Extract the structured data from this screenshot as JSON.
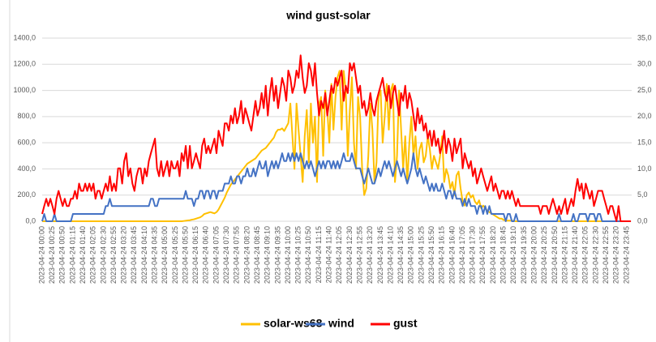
{
  "chart_data": {
    "type": "line",
    "title": "wind gust-solar",
    "categories": [
      "2023-04-24 00:00",
      null,
      null,
      null,
      null,
      "2023-04-24 00:25",
      null,
      null,
      null,
      null,
      "2023-04-24 00:50",
      null,
      null,
      null,
      null,
      "2023-04-24 01:15",
      null,
      null,
      null,
      null,
      "2023-04-24 01:40",
      null,
      null,
      null,
      null,
      "2023-04-24 02:05",
      null,
      null,
      null,
      null,
      "2023-04-24 02:30",
      null,
      null,
      null,
      null,
      "2023-04-24 02:55",
      null,
      null,
      null,
      null,
      "2023-04-24 03:20",
      null,
      null,
      null,
      null,
      "2023-04-24 03:45",
      null,
      null,
      null,
      null,
      "2023-04-24 04:10",
      null,
      null,
      null,
      null,
      "2023-04-24 04:35",
      null,
      null,
      null,
      null,
      "2023-04-24 05:00",
      null,
      null,
      null,
      null,
      "2023-04-24 05:25",
      null,
      null,
      null,
      null,
      "2023-04-24 05:50",
      null,
      null,
      null,
      null,
      "2023-04-24 06:15",
      null,
      null,
      null,
      null,
      "2023-04-24 06:40",
      null,
      null,
      null,
      null,
      "2023-04-24 07:05",
      null,
      null,
      null,
      null,
      "2023-04-24 07:30",
      null,
      null,
      null,
      null,
      "2023-04-24 07:55",
      null,
      null,
      null,
      null,
      "2023-04-24 08:20",
      null,
      null,
      null,
      null,
      "2023-04-24 08:45",
      null,
      null,
      null,
      null,
      "2023-04-24 09:10",
      null,
      null,
      null,
      null,
      "2023-04-24 09:35",
      null,
      null,
      null,
      null,
      "2023-04-24 10:00",
      null,
      null,
      null,
      null,
      "2023-04-24 10:25",
      null,
      null,
      null,
      null,
      "2023-04-24 10:50",
      null,
      null,
      null,
      null,
      "2023-04-24 11:15",
      null,
      null,
      null,
      null,
      "2023-04-24 11:40",
      null,
      null,
      null,
      null,
      "2023-04-24 12:05",
      null,
      null,
      null,
      null,
      "2023-04-24 12:30",
      null,
      null,
      null,
      null,
      "2023-04-24 12:55",
      null,
      null,
      null,
      null,
      "2023-04-24 13:20",
      null,
      null,
      null,
      null,
      "2023-04-24 13:45",
      null,
      null,
      null,
      null,
      "2023-04-24 14:10",
      null,
      null,
      null,
      null,
      "2023-04-24 14:35",
      null,
      null,
      null,
      null,
      "2023-04-24 15:00",
      null,
      null,
      null,
      null,
      "2023-04-24 15:25",
      null,
      null,
      null,
      null,
      "2023-04-24 15:50",
      null,
      null,
      null,
      null,
      "2023-04-24 16:15",
      null,
      null,
      null,
      null,
      "2023-04-24 16:40",
      null,
      null,
      null,
      null,
      "2023-04-24 17:05",
      null,
      null,
      null,
      null,
      "2023-04-24 17:30",
      null,
      null,
      null,
      null,
      "2023-04-24 17:55",
      null,
      null,
      null,
      null,
      "2023-04-24 18:20",
      null,
      null,
      null,
      null,
      "2023-04-24 18:45",
      null,
      null,
      null,
      null,
      "2023-04-24 19:10",
      null,
      null,
      null,
      null,
      "2023-04-24 19:35",
      null,
      null,
      null,
      null,
      "2023-04-24 20:00",
      null,
      null,
      null,
      null,
      "2023-04-24 20:25",
      null,
      null,
      null,
      null,
      "2023-04-24 20:50",
      null,
      null,
      null,
      null,
      "2023-04-24 21:15",
      null,
      null,
      null,
      null,
      "2023-04-24 21:40",
      null,
      null,
      null,
      null,
      "2023-04-24 22:05",
      null,
      null,
      null,
      null,
      "2023-04-24 22:30",
      null,
      null,
      null,
      null,
      "2023-04-24 22:55",
      null,
      null,
      null,
      null,
      "2023-04-24 23:20",
      null,
      null,
      null,
      null,
      "2023-04-24 23:45",
      null,
      null
    ],
    "series": [
      {
        "name": "solar-ws68",
        "color": "#FFC000",
        "values": [
          0,
          0,
          0,
          0,
          0,
          0,
          0,
          0,
          0,
          0,
          0,
          0,
          0,
          0,
          0,
          0,
          0,
          0,
          0,
          0,
          0,
          0,
          0,
          0,
          0,
          0,
          0,
          0,
          0,
          0,
          0,
          0,
          0,
          0,
          0,
          0,
          0,
          0,
          0,
          0,
          0,
          0,
          0,
          0,
          0,
          0,
          0,
          0,
          0,
          0,
          0,
          0,
          0,
          0,
          0,
          0,
          0,
          0,
          0,
          0,
          0,
          0,
          0,
          0,
          0,
          0,
          0,
          0,
          0,
          2,
          4,
          6,
          8,
          12,
          15,
          20,
          25,
          30,
          40,
          55,
          60,
          65,
          70,
          65,
          60,
          70,
          90,
          120,
          150,
          180,
          220,
          250,
          280,
          300,
          320,
          340,
          360,
          380,
          400,
          420,
          440,
          450,
          460,
          470,
          480,
          500,
          520,
          540,
          550,
          560,
          580,
          600,
          620,
          640,
          680,
          700,
          700,
          710,
          690,
          720,
          750,
          900,
          650,
          400,
          900,
          700,
          500,
          300,
          650,
          850,
          450,
          900,
          600,
          800,
          300,
          900,
          950,
          500,
          1000,
          850,
          600,
          1050,
          700,
          950,
          1100,
          1150,
          700,
          1150,
          1000,
          500,
          850,
          1100,
          600,
          400,
          950,
          800,
          400,
          200,
          250,
          500,
          900,
          700,
          300,
          450,
          950,
          1000,
          600,
          800,
          1050,
          700,
          1000,
          1050,
          300,
          500,
          1000,
          700,
          400,
          650,
          300,
          600,
          800,
          500,
          650,
          400,
          550,
          600,
          450,
          500,
          650,
          550,
          400,
          500,
          450,
          400,
          500,
          650,
          300,
          400,
          350,
          250,
          300,
          200,
          350,
          380,
          250,
          150,
          120,
          200,
          220,
          180,
          200,
          150,
          130,
          160,
          100,
          120,
          100,
          80,
          70,
          60,
          50,
          40,
          30,
          20,
          20,
          10,
          5,
          5,
          5,
          3,
          2,
          0,
          0,
          0,
          0,
          0,
          0,
          0,
          0,
          0,
          0,
          0,
          0,
          0,
          0,
          0,
          0,
          0,
          0,
          0,
          0,
          0,
          0,
          0,
          0,
          0,
          0,
          0,
          0,
          0,
          0,
          0,
          0,
          0,
          0,
          0,
          0,
          0,
          0,
          0,
          0,
          0,
          0,
          0,
          0,
          0,
          0,
          0,
          0,
          0,
          0,
          0,
          0,
          0,
          0,
          0,
          0,
          0
        ]
      },
      {
        "name": "wind",
        "color": "#4472C4",
        "axis": "y2",
        "values": [
          0,
          1.4,
          0,
          0,
          0,
          0,
          1.4,
          0,
          0,
          0,
          0,
          0,
          0,
          0,
          0,
          1.4,
          1.4,
          1.4,
          1.4,
          1.4,
          1.4,
          1.4,
          1.4,
          1.4,
          1.4,
          1.4,
          1.4,
          1.4,
          1.4,
          1.4,
          1.4,
          2.9,
          2.9,
          4.3,
          2.9,
          2.9,
          2.9,
          2.9,
          2.9,
          2.9,
          2.9,
          2.9,
          2.9,
          2.9,
          2.9,
          2.9,
          2.9,
          2.9,
          2.9,
          2.9,
          2.9,
          2.9,
          2.9,
          4.3,
          4.3,
          2.9,
          2.9,
          4.3,
          4.3,
          4.3,
          4.3,
          4.3,
          4.3,
          4.3,
          4.3,
          4.3,
          4.3,
          4.3,
          4.3,
          4.3,
          5.8,
          4.3,
          4.3,
          4.3,
          2.9,
          4.3,
          4.3,
          5.8,
          5.8,
          4.3,
          5.8,
          5.8,
          4.3,
          5.8,
          5.8,
          4.3,
          5.8,
          5.8,
          5.8,
          7.2,
          7.2,
          7.2,
          8.6,
          7.2,
          7.2,
          8.6,
          8.6,
          7.2,
          8.6,
          8.6,
          10.1,
          8.6,
          8.6,
          10.1,
          8.6,
          10.1,
          11.5,
          10.1,
          10.1,
          11.5,
          8.6,
          10.1,
          11.5,
          10.1,
          11.5,
          10.1,
          11.5,
          13,
          11.5,
          11.5,
          13,
          11.5,
          13,
          11.5,
          13,
          11.5,
          13,
          11.5,
          10.1,
          11.5,
          10.1,
          11.5,
          10.1,
          8.6,
          10.1,
          11.5,
          10.1,
          11.5,
          10.1,
          11.5,
          11.5,
          10.1,
          11.5,
          10.1,
          11.5,
          10.1,
          11.5,
          13,
          11.5,
          11.5,
          11.5,
          13,
          11.5,
          10.1,
          10.1,
          10.1,
          8.6,
          7.2,
          8.6,
          10.1,
          8.6,
          7.2,
          7.2,
          8.6,
          10.1,
          8.6,
          10.1,
          11.5,
          10.1,
          11.5,
          10.1,
          8.6,
          10.1,
          11.5,
          10.1,
          8.6,
          10.1,
          8.6,
          7.2,
          8.6,
          10.1,
          13,
          10.1,
          8.6,
          10.1,
          8.6,
          7.2,
          8.6,
          7.2,
          5.8,
          7.2,
          5.8,
          7.2,
          5.8,
          5.8,
          7.2,
          5.8,
          4.3,
          5.8,
          5.8,
          4.3,
          5.8,
          4.3,
          4.3,
          4.3,
          2.9,
          4.3,
          2.9,
          4.3,
          2.9,
          2.9,
          2.9,
          1.4,
          2.9,
          2.9,
          1.4,
          2.9,
          1.4,
          2.9,
          1.4,
          1.4,
          1.4,
          1.4,
          1.4,
          1.4,
          1.4,
          0,
          1.4,
          1.4,
          0,
          0,
          1.4,
          0,
          0,
          0,
          0,
          0,
          0,
          0,
          0,
          0,
          0,
          0,
          0,
          0,
          0,
          0,
          0,
          0,
          0,
          0,
          0,
          1.4,
          0,
          0,
          0,
          0,
          0,
          0,
          1.4,
          0,
          0,
          1.4,
          1.4,
          1.4,
          1.4,
          0,
          1.4,
          1.4,
          1.4,
          0,
          1.4,
          1.4,
          0,
          0,
          0,
          0,
          0,
          0,
          0,
          0,
          0,
          0,
          0,
          0,
          0,
          0,
          0
        ]
      },
      {
        "name": "gust",
        "color": "#FF0000",
        "axis": "y2",
        "values": [
          1.4,
          2.9,
          4.3,
          2.9,
          4.3,
          2.9,
          1.4,
          4.3,
          5.8,
          4.3,
          2.9,
          4.3,
          2.9,
          2.9,
          4.3,
          4.3,
          5.8,
          4.3,
          7.2,
          5.8,
          5.8,
          7.2,
          5.8,
          7.2,
          5.8,
          7.2,
          4.3,
          5.8,
          5.8,
          4.3,
          5.8,
          7.2,
          5.8,
          8.6,
          5.8,
          7.2,
          5.8,
          10.1,
          10.1,
          7.2,
          11.5,
          13,
          8.6,
          10.1,
          7.2,
          5.8,
          8.6,
          10.1,
          10.1,
          7.2,
          10.1,
          8.6,
          11.5,
          13,
          14.4,
          15.8,
          10.1,
          8.6,
          11.5,
          8.6,
          10.1,
          11.5,
          8.6,
          11.5,
          10.1,
          10.1,
          11.5,
          8.6,
          13,
          11.5,
          14.4,
          10.1,
          14.4,
          10.1,
          11.5,
          13,
          11.5,
          10.1,
          14.4,
          15.8,
          13,
          14.4,
          13,
          14.4,
          15.8,
          13,
          17.3,
          15.8,
          14.4,
          18.7,
          18.7,
          17.3,
          20.2,
          18.7,
          21.6,
          18.7,
          20.2,
          23,
          18.7,
          21.6,
          20.2,
          18.7,
          17.3,
          20.2,
          23,
          20.2,
          21.6,
          24.5,
          21.6,
          25.9,
          20.2,
          24.5,
          27.4,
          23,
          25.9,
          21.6,
          24.5,
          27.4,
          25.9,
          23,
          28.8,
          27.4,
          24.5,
          25.9,
          28.8,
          27.4,
          31.7,
          27.4,
          24.5,
          25.9,
          30.2,
          28.8,
          25.9,
          30.2,
          24.5,
          20.2,
          23,
          21.6,
          24.5,
          20.2,
          23,
          25.9,
          24.5,
          27.4,
          25.9,
          27.4,
          28.8,
          23,
          25.9,
          24.5,
          30.2,
          28.8,
          30.2,
          27.4,
          24.5,
          25.9,
          21.6,
          23,
          20.2,
          21.6,
          24.5,
          21.6,
          20.2,
          23,
          24.5,
          25.9,
          27.4,
          24.5,
          23,
          25.9,
          21.6,
          24.5,
          25.9,
          23,
          20.2,
          24.5,
          23,
          25.9,
          21.6,
          24.5,
          23,
          20.2,
          17.3,
          21.6,
          18.7,
          20.2,
          17.3,
          18.7,
          15.8,
          17.3,
          14.4,
          17.3,
          14.4,
          15.8,
          13,
          14.4,
          17.3,
          13,
          15.8,
          14.4,
          11.5,
          15.8,
          13,
          14.4,
          15.8,
          10.1,
          13,
          11.5,
          10.1,
          11.5,
          8.6,
          10.1,
          7.2,
          8.6,
          10.1,
          8.6,
          7.2,
          5.8,
          7.2,
          8.6,
          5.8,
          7.2,
          5.8,
          4.3,
          5.8,
          5.8,
          4.3,
          5.8,
          4.3,
          5.8,
          4.3,
          2.9,
          4.3,
          2.9,
          2.9,
          2.9,
          2.9,
          2.9,
          2.9,
          2.9,
          2.9,
          2.9,
          2.9,
          1.4,
          2.9,
          2.9,
          2.9,
          1.4,
          2.9,
          4.3,
          2.9,
          1.4,
          2.9,
          1.4,
          2.9,
          4.3,
          1.4,
          2.9,
          4.3,
          2.9,
          5.8,
          8.1,
          5.8,
          7.2,
          4.3,
          7.2,
          5.8,
          4.3,
          5.8,
          2.9,
          4.3,
          5.8,
          5.8,
          5.8,
          4.3,
          2.9,
          1.4,
          2.9,
          2.9,
          1.4,
          0,
          2.9,
          0,
          0,
          0,
          0,
          0,
          0
        ]
      }
    ],
    "ylim": [
      0,
      1400
    ],
    "yticks": [
      {
        "value": 0,
        "label": "0,0"
      },
      {
        "value": 200,
        "label": "200,0"
      },
      {
        "value": 400,
        "label": "400,0"
      },
      {
        "value": 600,
        "label": "600,0"
      },
      {
        "value": 800,
        "label": "800,0"
      },
      {
        "value": 1000,
        "label": "1000,0"
      },
      {
        "value": 1200,
        "label": "1200,0"
      },
      {
        "value": 1400,
        "label": "1400,0"
      }
    ],
    "y2lim": [
      0,
      35
    ],
    "y2ticks": [
      {
        "value": 0,
        "label": "0,0"
      },
      {
        "value": 5,
        "label": "5,0"
      },
      {
        "value": 10,
        "label": "10,0"
      },
      {
        "value": 15,
        "label": "15,0"
      },
      {
        "value": 20,
        "label": "20,0"
      },
      {
        "value": 25,
        "label": "25,0"
      },
      {
        "value": 30,
        "label": "30,0"
      },
      {
        "value": 35,
        "label": "35,0"
      }
    ],
    "grid": true,
    "legend": "bottom"
  }
}
